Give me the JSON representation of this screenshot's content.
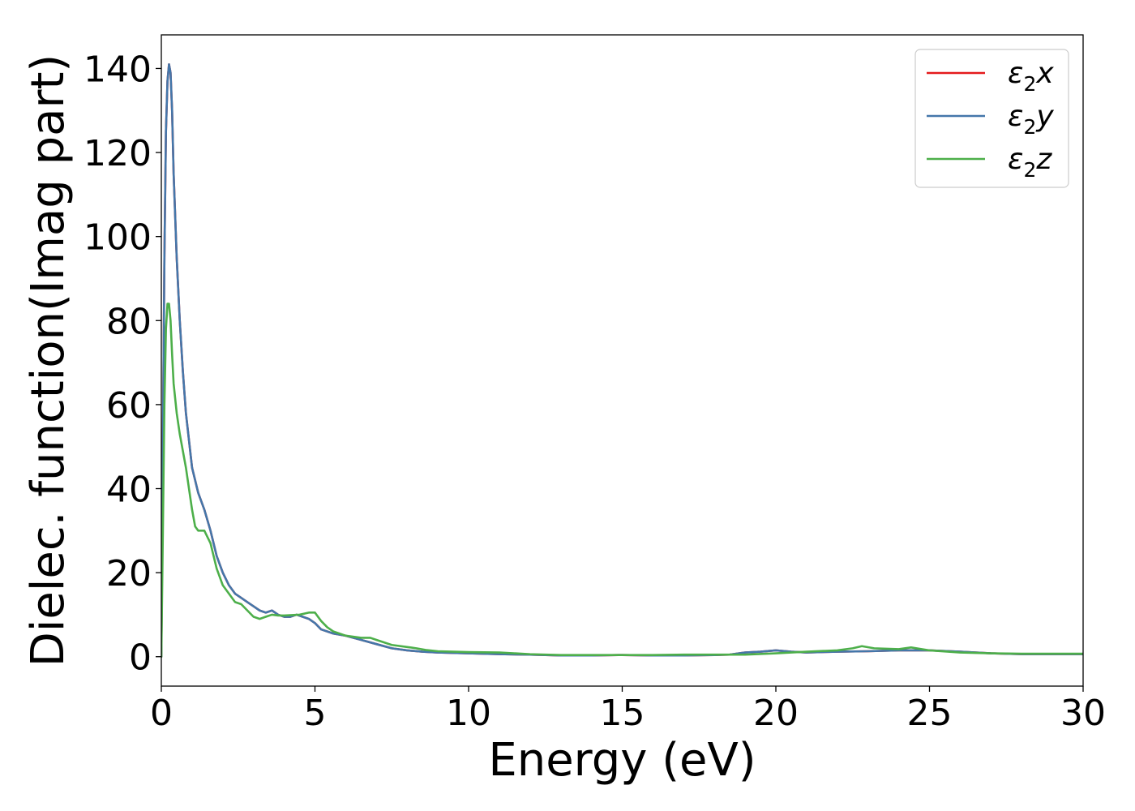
{
  "chart_data": {
    "type": "line",
    "title": "",
    "xlabel": "Energy (eV)",
    "ylabel": "Dielec. function(Imag part)",
    "xlim": [
      0,
      30
    ],
    "ylim": [
      -7,
      148
    ],
    "xticks": [
      0,
      5,
      10,
      15,
      20,
      25,
      30
    ],
    "yticks": [
      0,
      20,
      40,
      60,
      80,
      100,
      120,
      140
    ],
    "grid": false,
    "legend_position": "top-right",
    "series": [
      {
        "name": "ε2x",
        "legend_base": "ε",
        "legend_sub": "2",
        "legend_suffix": "x",
        "color": "#e41a1c",
        "x": [
          0,
          0.05,
          0.1,
          0.15,
          0.2,
          0.25,
          0.3,
          0.35,
          0.4,
          0.5,
          0.6,
          0.7,
          0.8,
          1.0,
          1.2,
          1.4,
          1.6,
          1.8,
          2.0,
          2.2,
          2.4,
          2.6,
          2.8,
          3.0,
          3.2,
          3.4,
          3.6,
          3.8,
          4.0,
          4.2,
          4.4,
          4.6,
          4.8,
          5.0,
          5.2,
          5.4,
          5.6,
          6.0,
          6.5,
          7.0,
          7.5,
          8.0,
          8.5,
          9.0,
          10,
          11,
          12,
          13,
          14,
          15,
          16,
          17,
          18,
          18.5,
          19,
          19.5,
          20,
          20.5,
          21,
          22,
          23,
          24,
          25,
          26,
          27,
          28,
          29,
          30
        ],
        "y": [
          0,
          50,
          95,
          125,
          137,
          141,
          139,
          130,
          115,
          95,
          80,
          68,
          58,
          45,
          39,
          35,
          30,
          24,
          20,
          17,
          15,
          14,
          13,
          12,
          11,
          10.5,
          11,
          10,
          9.5,
          9.5,
          10,
          9.5,
          9,
          8,
          6.5,
          6,
          5.5,
          5,
          4,
          3,
          2,
          1.5,
          1.2,
          1,
          0.8,
          0.6,
          0.5,
          0.3,
          0.3,
          0.4,
          0.3,
          0.3,
          0.4,
          0.5,
          1.0,
          1.2,
          1.5,
          1.2,
          1.0,
          1.2,
          1.3,
          1.5,
          1.5,
          1.2,
          0.8,
          0.6,
          0.6,
          0.6
        ]
      },
      {
        "name": "ε2y",
        "legend_base": "ε",
        "legend_sub": "2",
        "legend_suffix": "y",
        "color": "#4477aa",
        "x": [
          0,
          0.05,
          0.1,
          0.15,
          0.2,
          0.25,
          0.3,
          0.35,
          0.4,
          0.5,
          0.6,
          0.7,
          0.8,
          1.0,
          1.2,
          1.4,
          1.6,
          1.8,
          2.0,
          2.2,
          2.4,
          2.6,
          2.8,
          3.0,
          3.2,
          3.4,
          3.6,
          3.8,
          4.0,
          4.2,
          4.4,
          4.6,
          4.8,
          5.0,
          5.2,
          5.4,
          5.6,
          6.0,
          6.5,
          7.0,
          7.5,
          8.0,
          8.5,
          9.0,
          10,
          11,
          12,
          13,
          14,
          15,
          16,
          17,
          18,
          18.5,
          19,
          19.5,
          20,
          20.5,
          21,
          22,
          23,
          24,
          25,
          26,
          27,
          28,
          29,
          30
        ],
        "y": [
          0,
          50,
          95,
          125,
          137,
          141,
          139,
          130,
          115,
          95,
          80,
          68,
          58,
          45,
          39,
          35,
          30,
          24,
          20,
          17,
          15,
          14,
          13,
          12,
          11,
          10.5,
          11,
          10,
          9.5,
          9.5,
          10,
          9.5,
          9,
          8,
          6.5,
          6,
          5.5,
          5,
          4,
          3,
          2,
          1.5,
          1.2,
          1,
          0.8,
          0.6,
          0.5,
          0.3,
          0.3,
          0.4,
          0.3,
          0.3,
          0.4,
          0.5,
          1.0,
          1.2,
          1.5,
          1.2,
          1.0,
          1.2,
          1.3,
          1.5,
          1.5,
          1.2,
          0.8,
          0.6,
          0.6,
          0.6
        ]
      },
      {
        "name": "ε2z",
        "legend_base": "ε",
        "legend_sub": "2",
        "legend_suffix": "z",
        "color": "#4daf4a",
        "x": [
          0,
          0.05,
          0.1,
          0.15,
          0.2,
          0.25,
          0.3,
          0.35,
          0.4,
          0.5,
          0.6,
          0.7,
          0.8,
          0.9,
          1.0,
          1.1,
          1.2,
          1.4,
          1.6,
          1.8,
          2.0,
          2.2,
          2.4,
          2.6,
          2.8,
          3.0,
          3.2,
          3.4,
          3.6,
          3.8,
          4.0,
          4.5,
          4.8,
          5.0,
          5.2,
          5.4,
          5.6,
          6.0,
          6.5,
          6.8,
          7.0,
          7.5,
          8.0,
          8.3,
          8.6,
          9.0,
          10,
          11,
          12,
          13,
          14,
          15,
          16,
          17,
          18,
          19,
          20,
          21,
          22,
          22.5,
          22.8,
          23.2,
          24,
          24.4,
          25,
          26,
          27,
          28,
          29,
          30
        ],
        "y": [
          0,
          30,
          60,
          78,
          84,
          84,
          80,
          72,
          65,
          58,
          53,
          49,
          45,
          40,
          35,
          31,
          30,
          30,
          27,
          21,
          17,
          15,
          13,
          12.5,
          11,
          9.5,
          9,
          9.5,
          10,
          9.8,
          9.8,
          10,
          10.5,
          10.5,
          8.5,
          7,
          6,
          5,
          4.5,
          4.5,
          4,
          2.8,
          2.3,
          2,
          1.6,
          1.3,
          1.1,
          1.0,
          0.6,
          0.4,
          0.4,
          0.4,
          0.4,
          0.5,
          0.5,
          0.5,
          0.8,
          1.2,
          1.5,
          2.0,
          2.5,
          2.0,
          1.8,
          2.2,
          1.5,
          1.0,
          0.8,
          0.7,
          0.7,
          0.7
        ]
      }
    ]
  }
}
